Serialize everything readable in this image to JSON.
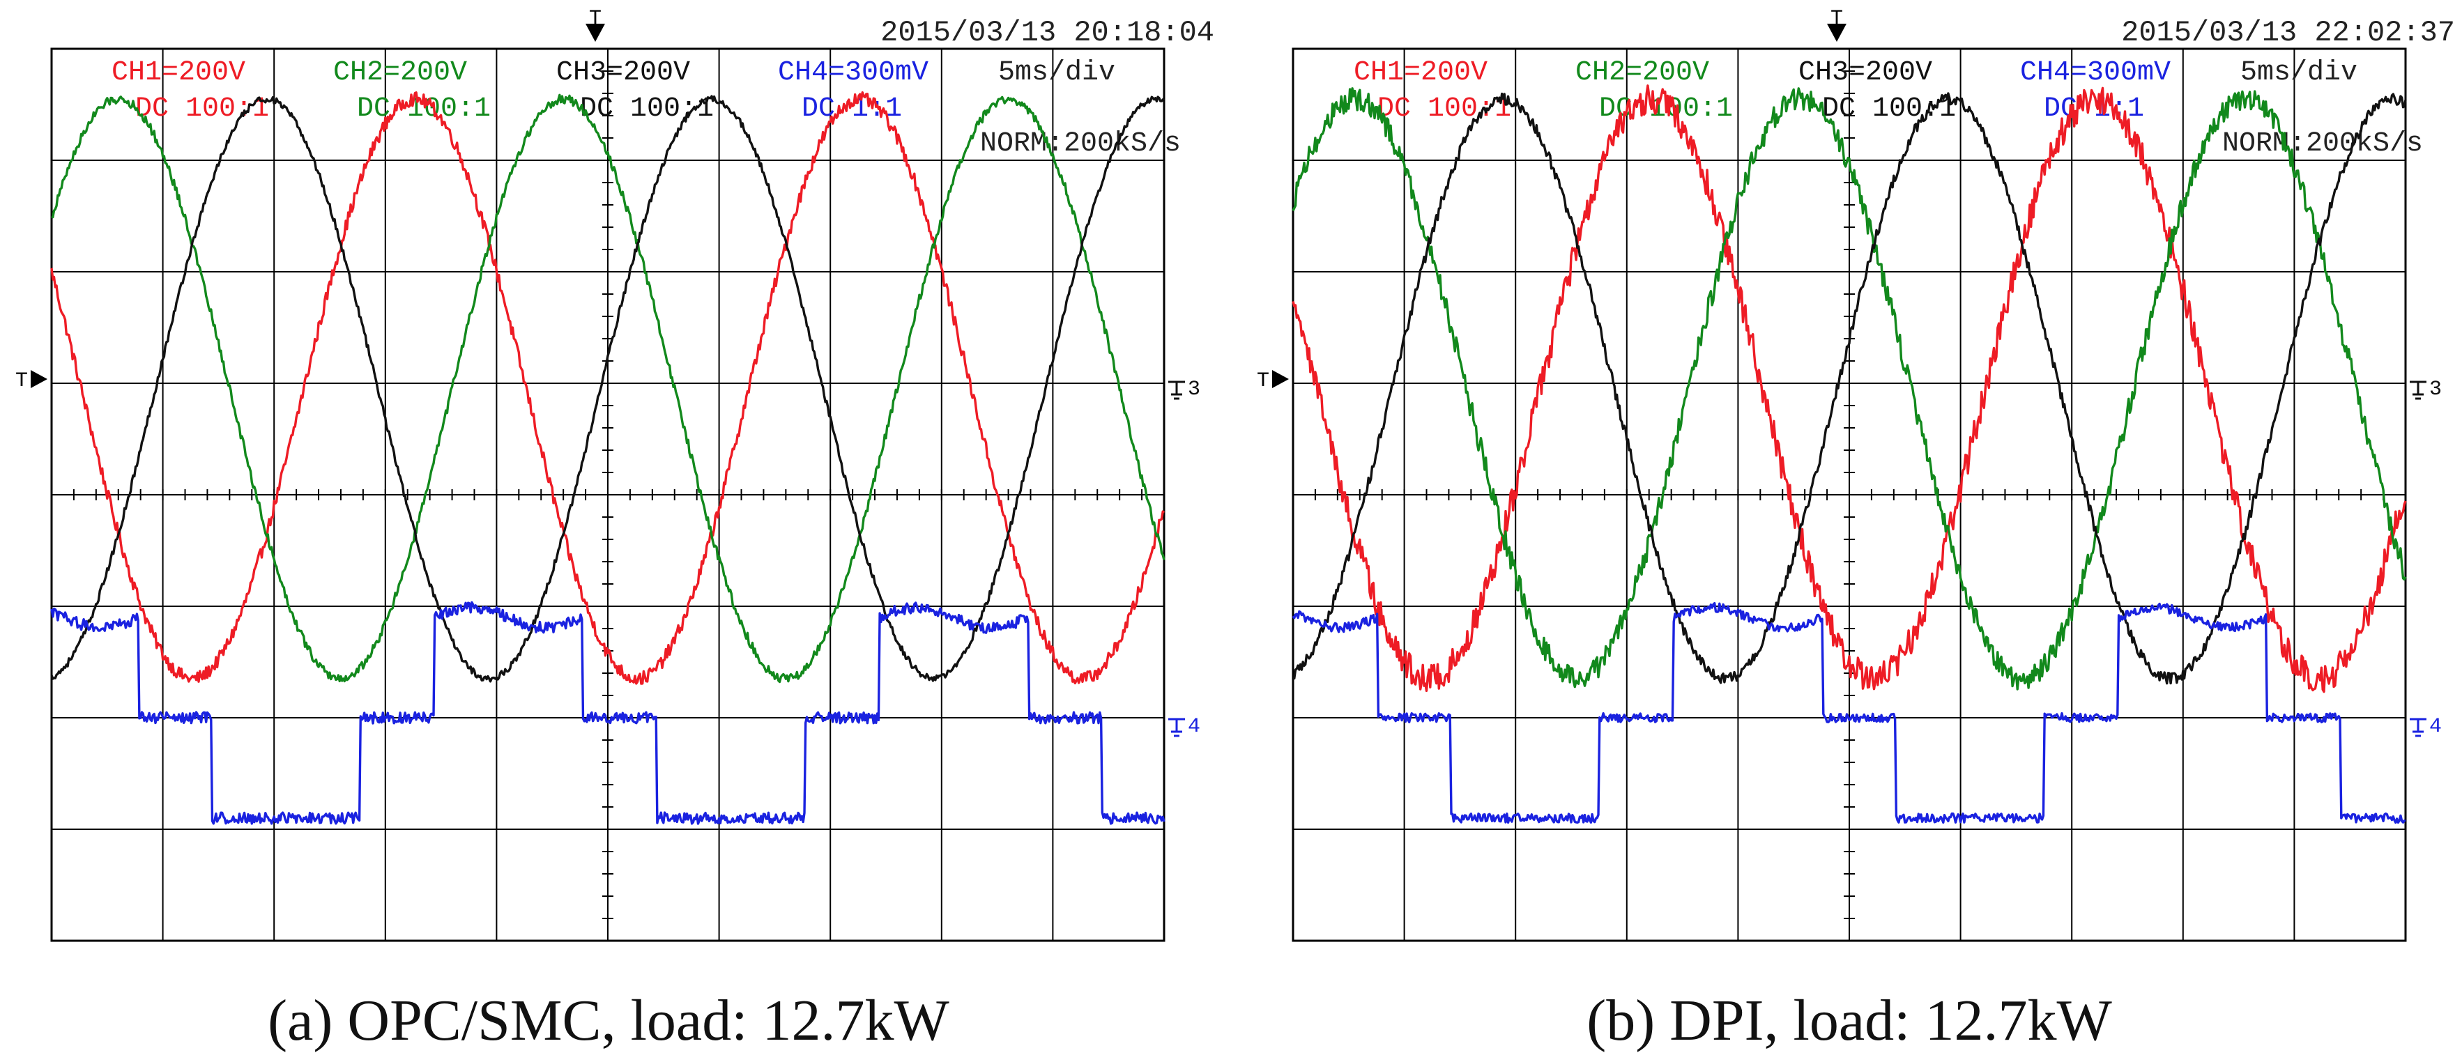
{
  "colors": {
    "ch1": "#ee1c25",
    "ch2": "#12891c",
    "ch3": "#111111",
    "ch4": "#1a22e0",
    "grid": "#000000",
    "text": "#222222"
  },
  "chart_data": [
    {
      "type": "line",
      "title": "(a) OPC/SMC, load: 12.7kW",
      "timestamp": "2015/03/13 20:18:04",
      "timebase": "5ms/div",
      "sample_rate": "NORM:200kS/s",
      "trigger_marker": "T",
      "ground_markers": [
        "3",
        "4"
      ],
      "channels": [
        {
          "label": "CH1=200V",
          "coupling": "DC 100:1",
          "color": "#ee1c25"
        },
        {
          "label": "CH2=200V",
          "coupling": "DC 100:1",
          "color": "#12891c"
        },
        {
          "label": "CH3=200V",
          "coupling": "DC 100:1",
          "color": "#111111"
        },
        {
          "label": "CH4=300mV",
          "coupling": "DC 1:1",
          "color": "#1a22e0"
        }
      ],
      "xlim": [
        0,
        50
      ],
      "xunit": "ms",
      "ylim": [
        -4,
        4
      ],
      "yunit": "div",
      "grid_divisions": {
        "x": 10,
        "y": 8
      },
      "series": [
        {
          "name": "CH1",
          "waveform": "sine",
          "center_div": 0.95,
          "amplitude_div": 2.6,
          "period_ms": 20,
          "phase_deg": 156,
          "noise_div": 0.06
        },
        {
          "name": "CH2",
          "waveform": "sine",
          "center_div": 0.95,
          "amplitude_div": 2.6,
          "period_ms": 20,
          "phase_deg": 36,
          "noise_div": 0.04
        },
        {
          "name": "CH3",
          "waveform": "sine",
          "center_div": 0.95,
          "amplitude_div": 2.6,
          "period_ms": 20,
          "phase_deg": -84,
          "noise_div": 0.03
        },
        {
          "name": "CH4",
          "waveform": "stepped",
          "center_div": -2.0,
          "step_div": 0.9,
          "period_ms": 20,
          "phase_deg": 50,
          "noise_div": 0.05
        }
      ]
    },
    {
      "type": "line",
      "title": "(b) DPI, load: 12.7kW",
      "timestamp": "2015/03/13 22:02:37",
      "timebase": "5ms/div",
      "sample_rate": "NORM:200kS/s",
      "trigger_marker": "T",
      "ground_markers": [
        "3",
        "4"
      ],
      "channels": [
        {
          "label": "CH1=200V",
          "coupling": "DC 100:1",
          "color": "#ee1c25"
        },
        {
          "label": "CH2=200V",
          "coupling": "DC 100:1",
          "color": "#12891c"
        },
        {
          "label": "CH3=200V",
          "coupling": "DC 100:1",
          "color": "#111111"
        },
        {
          "label": "CH4=300mV",
          "coupling": "DC 1:1",
          "color": "#1a22e0"
        }
      ],
      "xlim": [
        0,
        50
      ],
      "xunit": "ms",
      "ylim": [
        -4,
        4
      ],
      "yunit": "div",
      "grid_divisions": {
        "x": 10,
        "y": 8
      },
      "series": [
        {
          "name": "CH1",
          "waveform": "sine",
          "center_div": 0.95,
          "amplitude_div": 2.6,
          "period_ms": 20,
          "phase_deg": 160,
          "noise_div": 0.13
        },
        {
          "name": "CH2",
          "waveform": "sine",
          "center_div": 0.95,
          "amplitude_div": 2.6,
          "period_ms": 20,
          "phase_deg": 40,
          "noise_div": 0.1
        },
        {
          "name": "CH3",
          "waveform": "sine",
          "center_div": 0.95,
          "amplitude_div": 2.6,
          "period_ms": 20,
          "phase_deg": -80,
          "noise_div": 0.05
        },
        {
          "name": "CH4",
          "waveform": "stepped",
          "center_div": -2.0,
          "step_div": 0.9,
          "period_ms": 20,
          "phase_deg": 52,
          "noise_div": 0.04
        }
      ]
    }
  ]
}
